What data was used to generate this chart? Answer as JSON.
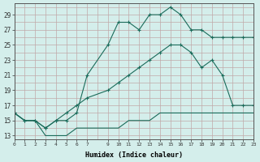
{
  "xlabel": "Humidex (Indice chaleur)",
  "bg_color": "#d4eeeb",
  "grid_color": "#c0a8a8",
  "line_color": "#1a6b5a",
  "xlim": [
    0,
    23
  ],
  "ylim": [
    12.5,
    30.5
  ],
  "xtick_vals": [
    0,
    1,
    2,
    3,
    4,
    5,
    6,
    7,
    9,
    10,
    11,
    12,
    13,
    14,
    15,
    16,
    17,
    18,
    19,
    20,
    21,
    22,
    23
  ],
  "xtick_labels": [
    "0",
    "1",
    "2",
    "3",
    "4",
    "5",
    "6",
    "7",
    "9",
    "10",
    "11",
    "12",
    "13",
    "14",
    "15",
    "16",
    "17",
    "18",
    "19",
    "20",
    "21",
    "22",
    "23"
  ],
  "ytick_vals": [
    13,
    15,
    17,
    19,
    21,
    23,
    25,
    27,
    29
  ],
  "line1_x": [
    0,
    1,
    2,
    3,
    4,
    5,
    6,
    7,
    9,
    10,
    11,
    12,
    13,
    14,
    15,
    16,
    17,
    18,
    19,
    20,
    21,
    22,
    23
  ],
  "line1_y": [
    16,
    15,
    15,
    14,
    15,
    15,
    16,
    21,
    25,
    28,
    28,
    27,
    29,
    29,
    30,
    29,
    27,
    27,
    26,
    26,
    26,
    26,
    26
  ],
  "line2_x": [
    0,
    1,
    2,
    3,
    4,
    5,
    6,
    7,
    9,
    10,
    11,
    12,
    13,
    14,
    15,
    16,
    17,
    18,
    19,
    20,
    21,
    22,
    23
  ],
  "line2_y": [
    16,
    15,
    15,
    14,
    15,
    16,
    17,
    18,
    19,
    20,
    21,
    22,
    23,
    24,
    25,
    25,
    24,
    22,
    23,
    21,
    17,
    17,
    17
  ],
  "line3_x": [
    0,
    1,
    2,
    3,
    4,
    5,
    6,
    7,
    9,
    10,
    11,
    12,
    13,
    14,
    15,
    16,
    17,
    18,
    19,
    20,
    21,
    22,
    23
  ],
  "line3_y": [
    16,
    15,
    15,
    13,
    13,
    13,
    14,
    14,
    14,
    14,
    15,
    15,
    15,
    16,
    16,
    16,
    16,
    16,
    16,
    16,
    16,
    16,
    16
  ],
  "marker_x1": [
    0,
    1,
    2,
    3,
    4,
    5,
    6,
    7,
    9,
    10,
    11,
    12,
    13,
    14,
    15,
    16,
    17,
    18,
    19,
    20,
    21,
    22,
    23
  ],
  "marker_x2": [
    0,
    1,
    2,
    3,
    4,
    5,
    6,
    7,
    9,
    10,
    11,
    12,
    13,
    14,
    15,
    16,
    17,
    18,
    19,
    20,
    21,
    22,
    23
  ]
}
